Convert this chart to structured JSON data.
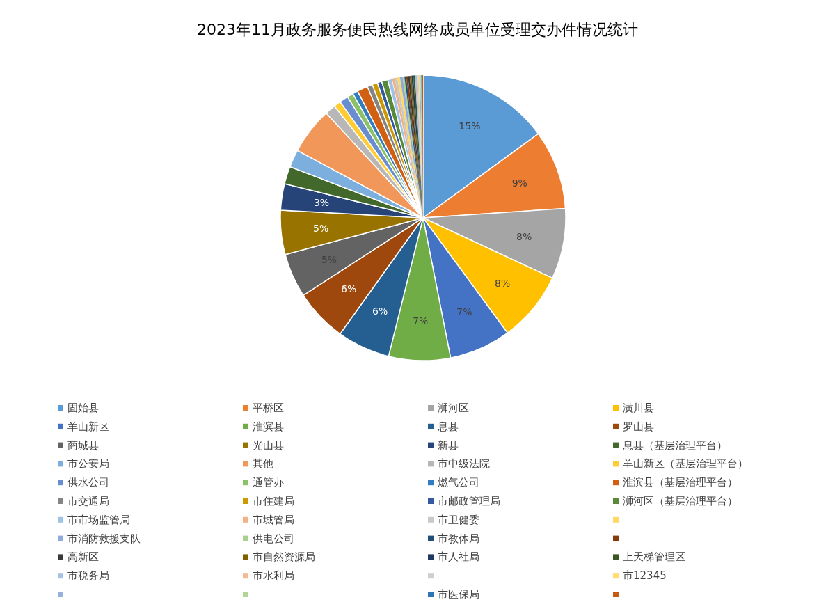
{
  "chart_data": {
    "type": "pie",
    "title": "2023年11月政务服务便民热线网络成员单位受理交办件情况统计",
    "categories": [
      "固始县",
      "平桥区",
      "浉河区",
      "潢川县",
      "羊山新区",
      "淮滨县",
      "息县",
      "罗山县",
      "商城县",
      "光山县",
      "新县",
      "息县（基层治理平台）",
      "市公安局",
      "其他",
      "市中级法院",
      "羊山新区（基层治理平台）",
      "供水公司",
      "通管办",
      "燃气公司",
      "淮滨县（基层治理平台）",
      "市交通局",
      "市住建局",
      "市邮政管理局",
      "浉河区（基层治理平台）",
      "市市场监管局",
      "市城管局",
      "市卫健委",
      null,
      "市消防救援支队",
      "供电公司",
      "市教体局",
      null,
      "高新区",
      "市自然资源局",
      "市人社局",
      "上天梯管理区",
      "市税务局",
      "市水利局",
      null,
      "市12345",
      null,
      null,
      "市医保局",
      null
    ],
    "values": [
      15,
      9,
      8,
      8,
      7,
      7,
      6,
      6,
      5,
      5,
      3,
      2,
      2,
      5.3,
      1.2,
      0.8,
      1,
      0.7,
      0.6,
      1.2,
      0.6,
      0.6,
      0.5,
      0.7,
      0.5,
      0.3,
      0.3,
      0.3,
      0.3,
      0.2,
      0.2,
      0.2,
      0.2,
      0.2,
      0.2,
      0.2,
      0.2,
      0.1,
      0.1,
      0.1,
      0.1,
      0.1,
      0.1,
      0.1
    ],
    "value_labels": [
      "15%",
      "9%",
      "8%",
      "8%",
      "7%",
      "7%",
      "6%",
      "6%",
      "5%",
      "5%",
      "3%",
      null,
      null,
      null,
      null,
      null,
      null,
      null,
      null,
      null,
      null,
      null,
      null,
      null,
      null,
      null,
      null,
      null,
      null,
      null,
      null,
      null,
      null,
      null,
      null,
      null,
      null,
      null,
      null,
      null,
      null,
      null,
      null,
      null
    ],
    "colors": [
      "#5b9bd5",
      "#ed7d31",
      "#a5a5a5",
      "#ffc000",
      "#4472c4",
      "#70ad47",
      "#255e91",
      "#9e480e",
      "#636363",
      "#997300",
      "#264478",
      "#43682b",
      "#7cafdd",
      "#f1975a",
      "#b7b7b7",
      "#ffcd33",
      "#698ed0",
      "#8cc168",
      "#327dc2",
      "#d26012",
      "#848484",
      "#cc9a00",
      "#335aa1",
      "#5a8a39",
      "#9dc3e6",
      "#f4b183",
      "#c9c9c9",
      "#ffd966",
      "#8faadc",
      "#a9d18e",
      "#1f4e79",
      "#843c0c",
      "#3a3a3a",
      "#7f6000",
      "#203864",
      "#385723",
      "#a3c4e8",
      "#f6b891",
      "#cfcfcf",
      "#ffdb70",
      "#97b0de",
      "#b0d597",
      "#2e75b6",
      "#c55a11"
    ],
    "legend": "bottom"
  }
}
